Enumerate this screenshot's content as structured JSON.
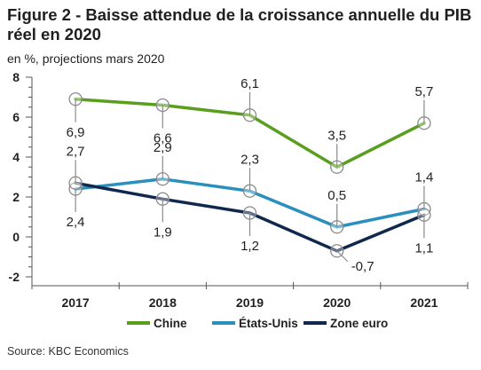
{
  "title": "Figure 2 - Baisse attendue de la croissance annuelle du PIB réel en 2020",
  "subtitle": "en %, projections mars 2020",
  "source": "Source: KBC Economics",
  "chart_data": {
    "type": "line",
    "x": [
      "2017",
      "2018",
      "2019",
      "2020",
      "2021"
    ],
    "ylim": [
      -2,
      8
    ],
    "yticks": [
      -2,
      0,
      2,
      4,
      6,
      8
    ],
    "grid": false,
    "legend_position": "bottom",
    "series": [
      {
        "name": "Chine",
        "color": "#5a9e1e",
        "values": [
          6.9,
          6.6,
          6.1,
          3.5,
          5.7
        ],
        "labels": [
          "6,9",
          "6,6",
          "6,1",
          "3,5",
          "5,7"
        ],
        "label_pos": [
          "below",
          "below",
          "above",
          "above",
          "above"
        ]
      },
      {
        "name": "États-Unis",
        "color": "#2a8fbd",
        "values": [
          2.4,
          2.9,
          2.3,
          0.5,
          1.4
        ],
        "labels": [
          "2,4",
          "2,9",
          "2,3",
          "0,5",
          "1,4"
        ],
        "label_pos": [
          "below",
          "above",
          "above",
          "above",
          "above"
        ]
      },
      {
        "name": "Zone euro",
        "color": "#10284e",
        "values": [
          2.7,
          1.9,
          1.2,
          -0.7,
          1.1
        ],
        "labels": [
          "2,7",
          "1,9",
          "1,2",
          "-0,7",
          "1,1"
        ],
        "label_pos": [
          "above",
          "below",
          "below",
          "right",
          "below"
        ]
      }
    ]
  }
}
